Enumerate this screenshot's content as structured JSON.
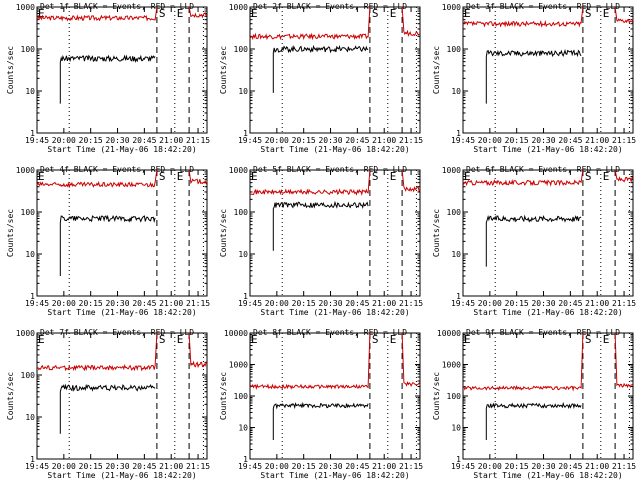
{
  "page": {
    "figure_title": "",
    "colors": {
      "background": "#ffffff",
      "events": "#000000",
      "lld": "#cc0000",
      "axes": "#000000"
    }
  },
  "chart_data": [
    {
      "type": "line",
      "detector": "1f",
      "title": "Det 1f BLACK = Events, RED = LLD",
      "xlabel": "Start Time (21-May-06 18:42:20)",
      "ylabel": "Counts/sec",
      "yscale": "log",
      "ylim": [
        1,
        1000
      ],
      "yticks": [
        "1",
        "10",
        "100",
        "1000"
      ],
      "xlim": [
        "19:45",
        "21:20"
      ],
      "xticks": [
        "19:45",
        "20:00",
        "20:15",
        "20:30",
        "20:45",
        "21:00",
        "21:15"
      ],
      "markers": [
        {
          "time": "20:03",
          "style": "dotted",
          "label": ""
        },
        {
          "time": "20:52",
          "style": "dashed",
          "label": "S"
        },
        {
          "time": "21:02",
          "style": "dotted",
          "label": "E"
        },
        {
          "time": "21:10",
          "style": "dashed",
          "label": ""
        },
        {
          "time": "21:18",
          "style": "dotted",
          "label": ""
        }
      ],
      "events": {
        "start": "19:58",
        "end": "20:51",
        "level": 60,
        "base": 5
      },
      "lld": {
        "start": "19:45",
        "end": "21:20",
        "level": 550,
        "spike": 1000
      }
    },
    {
      "type": "line",
      "detector": "2f",
      "title": "Det 2f BLACK = Events, RED = LLD",
      "xlabel": "Start Time (21-May-06 18:42:20)",
      "ylabel": "Counts/sec",
      "yscale": "log",
      "ylim": [
        1,
        1000
      ],
      "yticks": [
        "1",
        "10",
        "100",
        "1000"
      ],
      "xlim": [
        "19:45",
        "21:20"
      ],
      "xticks": [
        "19:45",
        "20:00",
        "20:15",
        "20:30",
        "20:45",
        "21:00",
        "21:15"
      ],
      "markers": [
        {
          "time": "20:03",
          "style": "dotted",
          "label": ""
        },
        {
          "time": "20:52",
          "style": "dashed",
          "label": "S"
        },
        {
          "time": "21:02",
          "style": "dotted",
          "label": "E"
        },
        {
          "time": "21:10",
          "style": "dashed",
          "label": ""
        },
        {
          "time": "21:18",
          "style": "dotted",
          "label": ""
        }
      ],
      "events": {
        "start": "19:58",
        "end": "20:51",
        "level": 100,
        "base": 9
      },
      "lld": {
        "start": "19:45",
        "end": "21:20",
        "level": 200,
        "spike": 1000
      }
    },
    {
      "type": "line",
      "detector": "3f",
      "title": "Det 3f BLACK = Events, RED = LLD",
      "xlabel": "Start Time (21-May-06 18:42:20)",
      "ylabel": "Counts/sec",
      "yscale": "log",
      "ylim": [
        1,
        1000
      ],
      "yticks": [
        "1",
        "10",
        "100",
        "1000"
      ],
      "xlim": [
        "19:45",
        "21:20"
      ],
      "xticks": [
        "19:45",
        "20:00",
        "20:15",
        "20:30",
        "20:45",
        "21:00",
        "21:15"
      ],
      "markers": [
        {
          "time": "20:03",
          "style": "dotted",
          "label": ""
        },
        {
          "time": "20:52",
          "style": "dashed",
          "label": "S"
        },
        {
          "time": "21:02",
          "style": "dotted",
          "label": "E"
        },
        {
          "time": "21:10",
          "style": "dashed",
          "label": ""
        },
        {
          "time": "21:18",
          "style": "dotted",
          "label": ""
        }
      ],
      "events": {
        "start": "19:58",
        "end": "20:51",
        "level": 80,
        "base": 5
      },
      "lld": {
        "start": "19:45",
        "end": "21:20",
        "level": 400,
        "spike": 1000
      }
    },
    {
      "type": "line",
      "detector": "4f",
      "title": "Det 4f BLACK = Events, RED = LLD",
      "xlabel": "Start Time (21-May-06 18:42:20)",
      "ylabel": "Counts/sec",
      "yscale": "log",
      "ylim": [
        1,
        1000
      ],
      "yticks": [
        "1",
        "10",
        "100",
        "1000"
      ],
      "xlim": [
        "19:45",
        "21:20"
      ],
      "xticks": [
        "19:45",
        "20:00",
        "20:15",
        "20:30",
        "20:45",
        "21:00",
        "21:15"
      ],
      "markers": [
        {
          "time": "20:03",
          "style": "dotted",
          "label": ""
        },
        {
          "time": "20:52",
          "style": "dashed",
          "label": "S"
        },
        {
          "time": "21:02",
          "style": "dotted",
          "label": "E"
        },
        {
          "time": "21:10",
          "style": "dashed",
          "label": ""
        },
        {
          "time": "21:18",
          "style": "dotted",
          "label": ""
        }
      ],
      "events": {
        "start": "19:58",
        "end": "20:51",
        "level": 70,
        "base": 3
      },
      "lld": {
        "start": "19:45",
        "end": "21:20",
        "level": 450,
        "spike": 1000
      }
    },
    {
      "type": "line",
      "detector": "5f",
      "title": "Det 5f BLACK = Events, RED = LLD",
      "xlabel": "Start Time (21-May-06 18:42:20)",
      "ylabel": "Counts/sec",
      "yscale": "log",
      "ylim": [
        1,
        1000
      ],
      "yticks": [
        "1",
        "10",
        "100",
        "1000"
      ],
      "xlim": [
        "19:45",
        "21:20"
      ],
      "xticks": [
        "19:45",
        "20:00",
        "20:15",
        "20:30",
        "20:45",
        "21:00",
        "21:15"
      ],
      "markers": [
        {
          "time": "20:03",
          "style": "dotted",
          "label": ""
        },
        {
          "time": "20:52",
          "style": "dashed",
          "label": "S"
        },
        {
          "time": "21:02",
          "style": "dotted",
          "label": "E"
        },
        {
          "time": "21:10",
          "style": "dashed",
          "label": ""
        },
        {
          "time": "21:18",
          "style": "dotted",
          "label": ""
        }
      ],
      "events": {
        "start": "19:58",
        "end": "20:51",
        "level": 150,
        "base": 12
      },
      "lld": {
        "start": "19:45",
        "end": "21:20",
        "level": 300,
        "spike": 1000
      }
    },
    {
      "type": "line",
      "detector": "6f",
      "title": "Det 6f BLACK = Events, RED = LLD",
      "xlabel": "Start Time (21-May-06 18:42:20)",
      "ylabel": "Counts/sec",
      "yscale": "log",
      "ylim": [
        1,
        1000
      ],
      "yticks": [
        "1",
        "10",
        "100",
        "1000"
      ],
      "xlim": [
        "19:45",
        "21:20"
      ],
      "xticks": [
        "19:45",
        "20:00",
        "20:15",
        "20:30",
        "20:45",
        "21:00",
        "21:15"
      ],
      "markers": [
        {
          "time": "20:03",
          "style": "dotted",
          "label": ""
        },
        {
          "time": "20:52",
          "style": "dashed",
          "label": "S"
        },
        {
          "time": "21:02",
          "style": "dotted",
          "label": "E"
        },
        {
          "time": "21:10",
          "style": "dashed",
          "label": ""
        },
        {
          "time": "21:18",
          "style": "dotted",
          "label": ""
        }
      ],
      "events": {
        "start": "19:58",
        "end": "20:51",
        "level": 70,
        "base": 5
      },
      "lld": {
        "start": "19:45",
        "end": "21:20",
        "level": 500,
        "spike": 1000
      }
    },
    {
      "type": "line",
      "detector": "7f",
      "title": "Det 7f BLACK = Events, RED = LLD",
      "xlabel": "Start Time (21-May-06 18:42:20)",
      "ylabel": "Counts/sec",
      "yscale": "log",
      "ylim": [
        1,
        1000
      ],
      "yticks": [
        "1",
        "10",
        "100",
        "1000"
      ],
      "xlim": [
        "19:45",
        "21:20"
      ],
      "xticks": [
        "19:45",
        "20:00",
        "20:15",
        "20:30",
        "20:45",
        "21:00",
        "21:15"
      ],
      "markers": [
        {
          "time": "20:03",
          "style": "dotted",
          "label": ""
        },
        {
          "time": "20:52",
          "style": "dashed",
          "label": "S"
        },
        {
          "time": "21:02",
          "style": "dotted",
          "label": "E"
        },
        {
          "time": "21:10",
          "style": "dashed",
          "label": ""
        },
        {
          "time": "21:18",
          "style": "dotted",
          "label": ""
        }
      ],
      "events": {
        "start": "19:58",
        "end": "20:51",
        "level": 50,
        "base": 4
      },
      "lld": {
        "start": "19:45",
        "end": "21:20",
        "level": 150,
        "spike": 1000
      }
    },
    {
      "type": "line",
      "detector": "8f",
      "title": "Det 8f BLACK = Events, RED = LLD",
      "xlabel": "Start Time (21-May-06 18:42:20)",
      "ylabel": "Counts/sec",
      "yscale": "log",
      "ylim": [
        1,
        10000
      ],
      "yticks": [
        "1",
        "10",
        "100",
        "1000",
        "10000"
      ],
      "xlim": [
        "19:45",
        "21:20"
      ],
      "xticks": [
        "19:45",
        "20:00",
        "20:15",
        "20:30",
        "20:45",
        "21:00",
        "21:15"
      ],
      "markers": [
        {
          "time": "20:03",
          "style": "dotted",
          "label": ""
        },
        {
          "time": "20:52",
          "style": "dashed",
          "label": "S"
        },
        {
          "time": "21:02",
          "style": "dotted",
          "label": "E"
        },
        {
          "time": "21:10",
          "style": "dashed",
          "label": ""
        },
        {
          "time": "21:18",
          "style": "dotted",
          "label": ""
        }
      ],
      "events": {
        "start": "19:58",
        "end": "20:51",
        "level": 50,
        "base": 4
      },
      "lld": {
        "start": "19:45",
        "end": "21:20",
        "level": 200,
        "spike": 10000
      }
    },
    {
      "type": "line",
      "detector": "9f",
      "title": "Det 9f BLACK = Events, RED = LLD",
      "xlabel": "Start Time (21-May-06 18:42:20)",
      "ylabel": "Counts/sec",
      "yscale": "log",
      "ylim": [
        1,
        10000
      ],
      "yticks": [
        "1",
        "10",
        "100",
        "1000",
        "10000"
      ],
      "xlim": [
        "19:45",
        "21:20"
      ],
      "xticks": [
        "19:45",
        "20:00",
        "20:15",
        "20:30",
        "20:45",
        "21:00",
        "21:15"
      ],
      "markers": [
        {
          "time": "20:03",
          "style": "dotted",
          "label": ""
        },
        {
          "time": "20:52",
          "style": "dashed",
          "label": "S"
        },
        {
          "time": "21:02",
          "style": "dotted",
          "label": "E"
        },
        {
          "time": "21:10",
          "style": "dashed",
          "label": ""
        },
        {
          "time": "21:18",
          "style": "dotted",
          "label": ""
        }
      ],
      "events": {
        "start": "19:58",
        "end": "20:51",
        "level": 50,
        "base": 4
      },
      "lld": {
        "start": "19:45",
        "end": "21:20",
        "level": 180,
        "spike": 10000
      }
    }
  ]
}
